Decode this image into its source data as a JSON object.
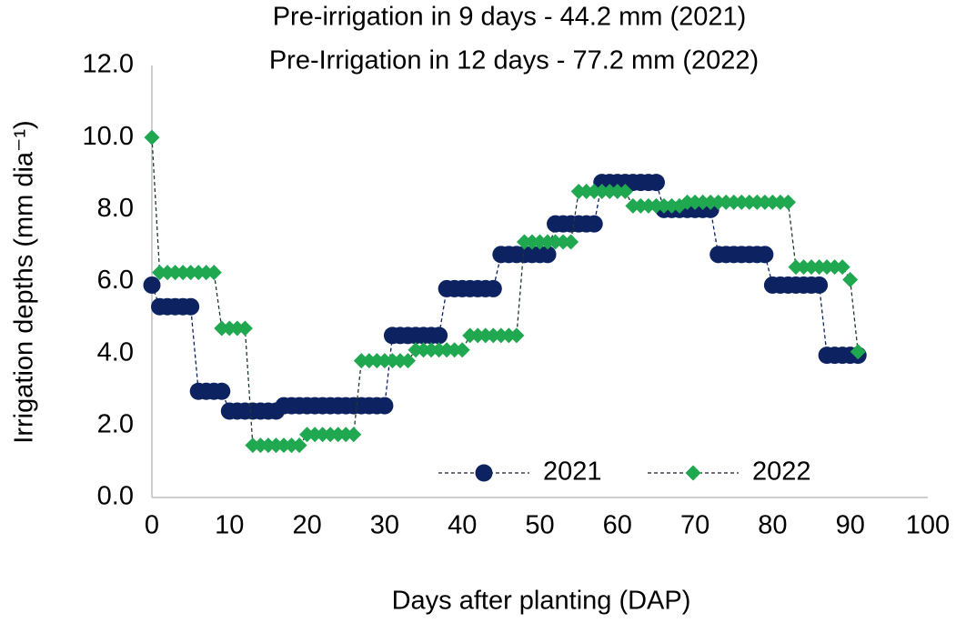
{
  "chart_data": {
    "type": "line",
    "title": "Pre-irrigation in 9 days - 44.2 mm (2021)",
    "subtitle": "Pre-Irrigation in 12 days - 77.2 mm (2022)",
    "x_label": "Days after planting (DAP)",
    "y_label": "Irrigation depths (mm dia⁻¹)",
    "x": [
      0,
      1,
      2,
      3,
      4,
      5,
      6,
      7,
      8,
      9,
      10,
      11,
      12,
      13,
      14,
      15,
      16,
      17,
      18,
      19,
      20,
      21,
      22,
      23,
      24,
      25,
      26,
      27,
      28,
      29,
      30,
      31,
      32,
      33,
      34,
      35,
      36,
      37,
      38,
      39,
      40,
      41,
      42,
      43,
      44,
      45,
      46,
      47,
      48,
      49,
      50,
      51,
      52,
      53,
      54,
      55,
      56,
      57,
      58,
      59,
      60,
      61,
      62,
      63,
      64,
      65,
      66,
      67,
      68,
      69,
      70,
      71,
      72,
      73,
      74,
      75,
      76,
      77,
      78,
      79,
      80,
      81,
      82,
      83,
      84,
      85,
      86,
      87,
      88,
      89,
      90,
      91
    ],
    "series": [
      {
        "name": "2021",
        "color": "#0d2260",
        "marker": "circle",
        "values": [
          5.9,
          5.3,
          5.3,
          5.3,
          5.3,
          5.3,
          2.95,
          2.95,
          2.95,
          2.95,
          2.4,
          2.4,
          2.4,
          2.4,
          2.4,
          2.4,
          2.4,
          2.55,
          2.55,
          2.55,
          2.55,
          2.55,
          2.55,
          2.55,
          2.55,
          2.55,
          2.55,
          2.55,
          2.55,
          2.55,
          2.55,
          4.5,
          4.5,
          4.5,
          4.5,
          4.5,
          4.5,
          4.5,
          5.8,
          5.8,
          5.8,
          5.8,
          5.8,
          5.8,
          5.8,
          6.75,
          6.75,
          6.75,
          6.75,
          6.75,
          6.75,
          6.75,
          7.6,
          7.6,
          7.6,
          7.6,
          7.6,
          7.6,
          8.75,
          8.75,
          8.75,
          8.75,
          8.75,
          8.75,
          8.75,
          8.75,
          8.0,
          8.0,
          8.0,
          8.0,
          8.0,
          8.0,
          8.0,
          6.75,
          6.75,
          6.75,
          6.75,
          6.75,
          6.75,
          6.75,
          5.9,
          5.9,
          5.9,
          5.9,
          5.9,
          5.9,
          5.9,
          3.95,
          3.95,
          3.95,
          3.95,
          3.95
        ]
      },
      {
        "name": "2022",
        "color": "#1fa84f",
        "marker": "diamond",
        "values": [
          10,
          6.25,
          6.25,
          6.25,
          6.25,
          6.25,
          6.25,
          6.25,
          6.25,
          4.7,
          4.7,
          4.7,
          4.7,
          1.45,
          1.45,
          1.45,
          1.45,
          1.45,
          1.45,
          1.45,
          1.75,
          1.75,
          1.75,
          1.75,
          1.75,
          1.75,
          1.75,
          3.8,
          3.8,
          3.8,
          3.8,
          3.8,
          3.8,
          3.8,
          4.1,
          4.1,
          4.1,
          4.1,
          4.1,
          4.1,
          4.1,
          4.5,
          4.5,
          4.5,
          4.5,
          4.5,
          4.5,
          4.5,
          7.1,
          7.1,
          7.1,
          7.1,
          7.1,
          7.1,
          7.1,
          8.5,
          8.5,
          8.5,
          8.5,
          8.5,
          8.5,
          8.5,
          8.1,
          8.1,
          8.1,
          8.1,
          8.1,
          8.1,
          8.1,
          8.2,
          8.2,
          8.2,
          8.2,
          8.2,
          8.2,
          8.2,
          8.2,
          8.2,
          8.2,
          8.2,
          8.2,
          8.2,
          8.2,
          6.4,
          6.4,
          6.4,
          6.4,
          6.4,
          6.4,
          6.4,
          6.05,
          4.05
        ]
      }
    ],
    "xlim": [
      0,
      100
    ],
    "xticks": [
      0,
      10,
      20,
      30,
      40,
      50,
      60,
      70,
      80,
      90,
      100
    ],
    "ylim": [
      0,
      12
    ],
    "yticks": [
      {
        "value": 0,
        "label": "0.0"
      },
      {
        "value": 2,
        "label": "2.0"
      },
      {
        "value": 4,
        "label": "4.0"
      },
      {
        "value": 6,
        "label": "6.0"
      },
      {
        "value": 8,
        "label": "8.0"
      },
      {
        "value": 10,
        "label": "10.0"
      },
      {
        "value": 12,
        "label": "12.0"
      }
    ],
    "grid": false,
    "legend": "bottom-right"
  }
}
